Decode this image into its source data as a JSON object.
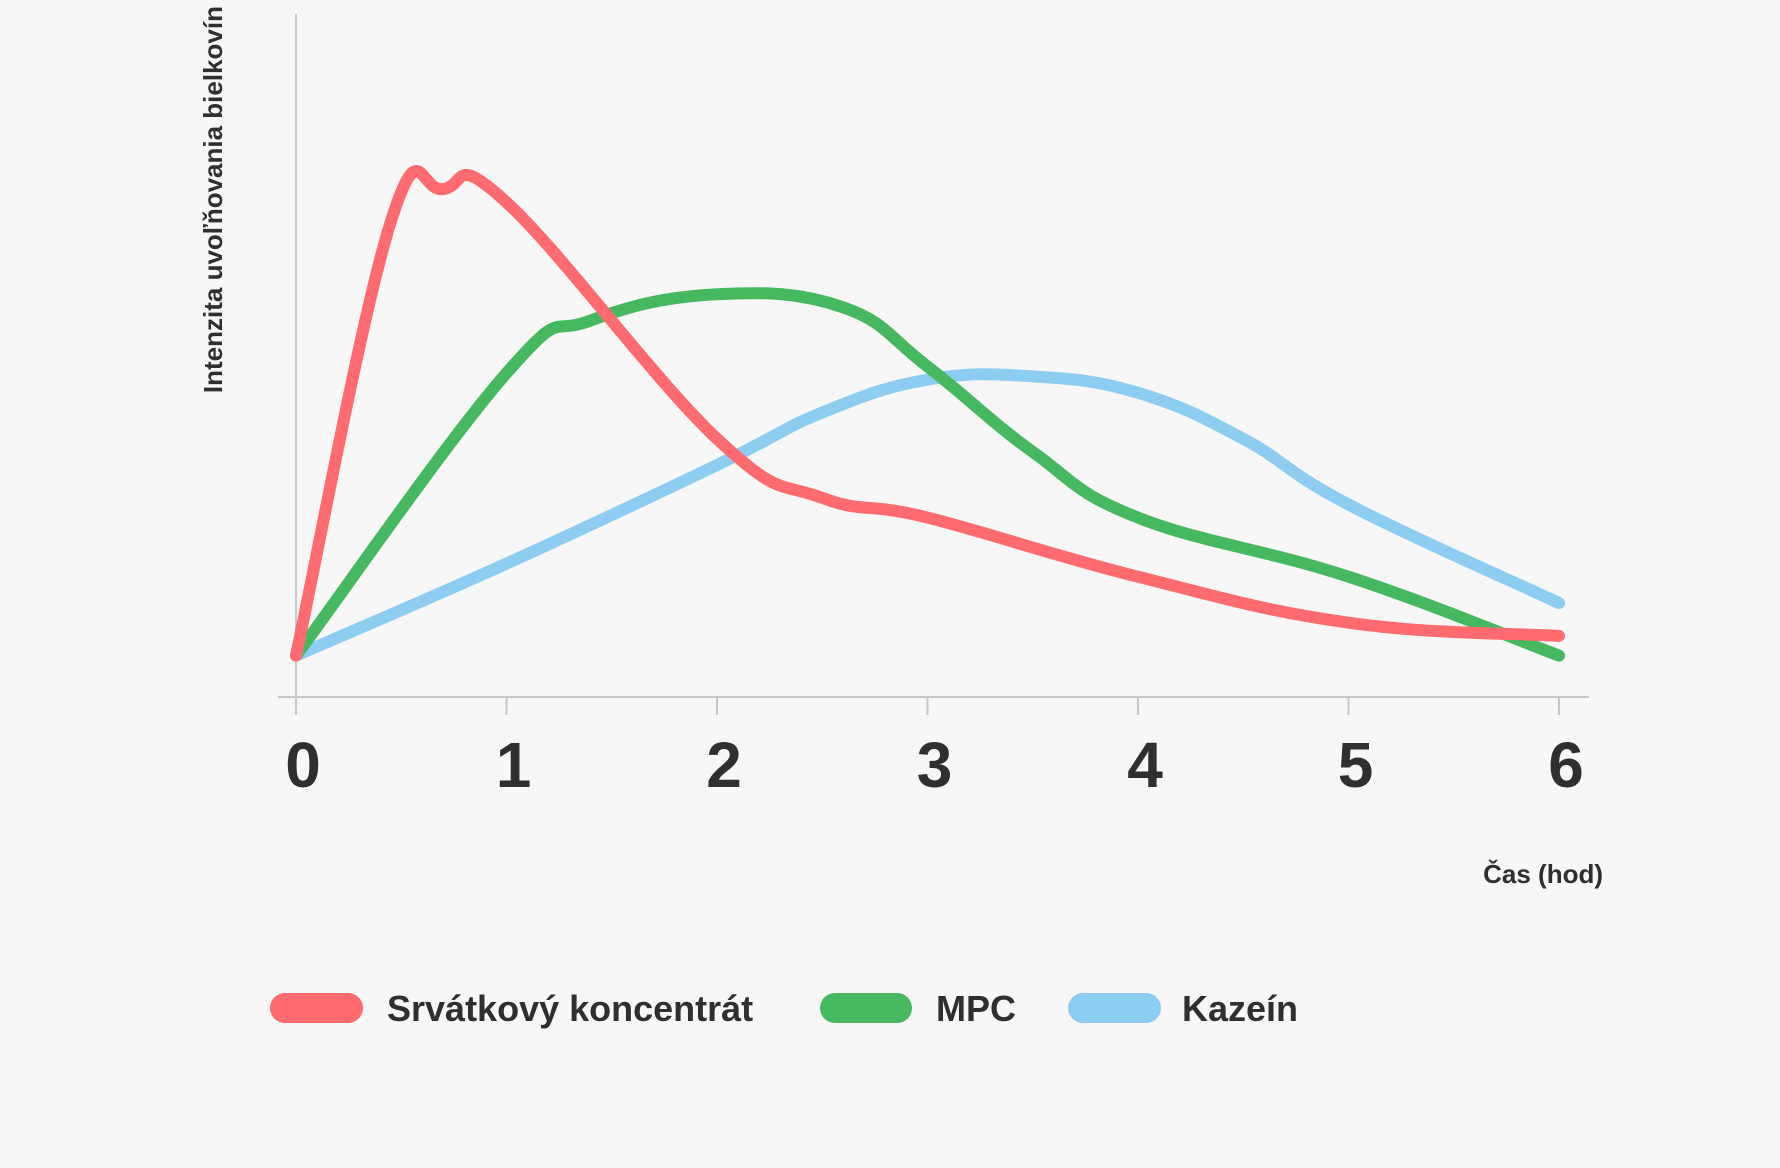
{
  "chart_data": {
    "type": "line",
    "title": "",
    "xlabel": "Čas (hod)",
    "ylabel": "Intenzita uvoľňovania bielkovín",
    "x": [
      0,
      1,
      2,
      3,
      4,
      5,
      6
    ],
    "xlim": [
      0,
      6
    ],
    "ylim": [
      0,
      100
    ],
    "y_ticks_shown": false,
    "grid": false,
    "legend_position": "bottom",
    "series": [
      {
        "name": "Srvátkový koncentrát",
        "color": "#ff6b6e",
        "points": [
          [
            0,
            6
          ],
          [
            0.45,
            72
          ],
          [
            0.7,
            77
          ],
          [
            1,
            75
          ],
          [
            2,
            39
          ],
          [
            2.5,
            30
          ],
          [
            3,
            27
          ],
          [
            4,
            18
          ],
          [
            5,
            11
          ],
          [
            6,
            9
          ]
        ]
      },
      {
        "name": "MPC",
        "color": "#45b860",
        "points": [
          [
            0,
            6
          ],
          [
            1,
            49
          ],
          [
            1.4,
            57
          ],
          [
            2,
            61
          ],
          [
            2.6,
            59
          ],
          [
            3,
            50
          ],
          [
            3.5,
            37
          ],
          [
            4,
            27
          ],
          [
            5,
            18
          ],
          [
            6,
            6
          ]
        ]
      },
      {
        "name": "Kazeín",
        "color": "#8ecdf2",
        "points": [
          [
            0,
            6
          ],
          [
            1,
            20
          ],
          [
            2,
            35
          ],
          [
            2.5,
            43
          ],
          [
            3,
            48
          ],
          [
            3.5,
            48.5
          ],
          [
            4,
            46
          ],
          [
            4.5,
            39
          ],
          [
            5,
            29
          ],
          [
            6,
            14
          ]
        ]
      }
    ]
  }
}
